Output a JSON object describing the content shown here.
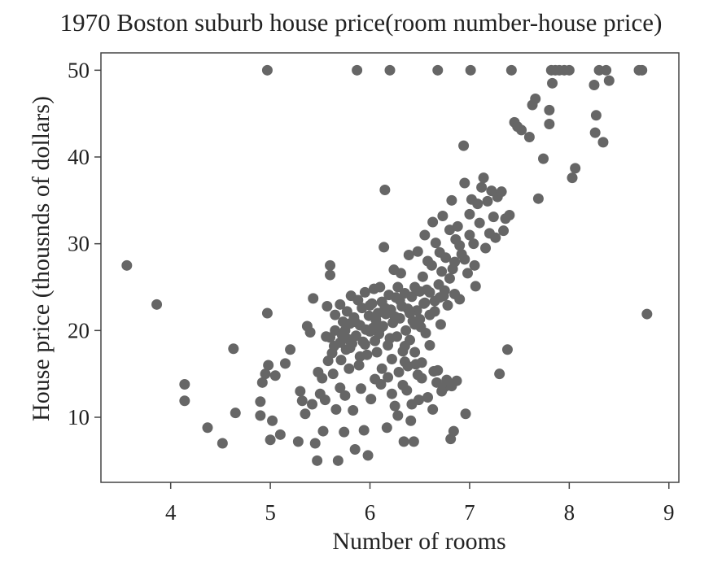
{
  "chart_data": {
    "type": "scatter",
    "title": "1970 Boston suburb house price(room number-house price)",
    "xlabel": "Number of rooms",
    "ylabel": "House price (thousnds of dollars)",
    "xlim": [
      3.3,
      9.1
    ],
    "ylim": [
      2.5,
      52
    ],
    "xticks": [
      4,
      5,
      6,
      7,
      8,
      9
    ],
    "yticks": [
      10,
      20,
      30,
      40,
      50
    ],
    "grid": false,
    "legend": "none",
    "marker_color": "#666666",
    "points": [
      [
        3.56,
        27.5
      ],
      [
        3.86,
        23.0
      ],
      [
        4.14,
        13.8
      ],
      [
        4.14,
        11.9
      ],
      [
        4.37,
        8.8
      ],
      [
        4.52,
        7.0
      ],
      [
        4.63,
        17.9
      ],
      [
        4.65,
        10.5
      ],
      [
        4.97,
        50.0
      ],
      [
        4.97,
        22.0
      ],
      [
        4.9,
        10.2
      ],
      [
        4.9,
        11.8
      ],
      [
        4.92,
        14.0
      ],
      [
        4.95,
        15.0
      ],
      [
        4.98,
        16.0
      ],
      [
        5.0,
        7.4
      ],
      [
        5.02,
        9.6
      ],
      [
        5.05,
        14.8
      ],
      [
        5.1,
        8.0
      ],
      [
        5.15,
        16.2
      ],
      [
        5.2,
        17.8
      ],
      [
        5.28,
        7.2
      ],
      [
        5.3,
        13.0
      ],
      [
        5.32,
        11.9
      ],
      [
        5.35,
        10.4
      ],
      [
        5.37,
        20.5
      ],
      [
        5.4,
        19.8
      ],
      [
        5.42,
        11.5
      ],
      [
        5.43,
        23.7
      ],
      [
        5.45,
        7.0
      ],
      [
        5.47,
        5.0
      ],
      [
        5.48,
        15.2
      ],
      [
        5.5,
        12.7
      ],
      [
        5.52,
        14.5
      ],
      [
        5.53,
        8.4
      ],
      [
        5.55,
        12.0
      ],
      [
        5.56,
        19.3
      ],
      [
        5.57,
        22.8
      ],
      [
        5.58,
        16.5
      ],
      [
        5.6,
        26.4
      ],
      [
        5.6,
        27.5
      ],
      [
        5.62,
        17.4
      ],
      [
        5.63,
        15.0
      ],
      [
        5.64,
        18.2
      ],
      [
        5.65,
        20.0
      ],
      [
        5.66,
        10.9
      ],
      [
        5.68,
        5.0
      ],
      [
        5.7,
        23.0
      ],
      [
        5.7,
        13.4
      ],
      [
        5.71,
        16.6
      ],
      [
        5.72,
        19.5
      ],
      [
        5.73,
        21.0
      ],
      [
        5.74,
        8.3
      ],
      [
        5.75,
        12.5
      ],
      [
        5.76,
        17.8
      ],
      [
        5.77,
        22.2
      ],
      [
        5.78,
        19.0
      ],
      [
        5.79,
        15.6
      ],
      [
        5.8,
        20.8
      ],
      [
        5.81,
        24.0
      ],
      [
        5.82,
        18.5
      ],
      [
        5.83,
        10.8
      ],
      [
        5.84,
        21.5
      ],
      [
        5.85,
        6.3
      ],
      [
        5.86,
        19.4
      ],
      [
        5.87,
        50.0
      ],
      [
        5.88,
        23.5
      ],
      [
        5.89,
        16.0
      ],
      [
        5.9,
        20.6
      ],
      [
        5.91,
        13.3
      ],
      [
        5.92,
        22.6
      ],
      [
        5.93,
        18.7
      ],
      [
        5.94,
        8.5
      ],
      [
        5.95,
        24.4
      ],
      [
        5.96,
        20.1
      ],
      [
        5.97,
        17.2
      ],
      [
        5.98,
        5.6
      ],
      [
        5.99,
        21.7
      ],
      [
        6.0,
        19.9
      ],
      [
        6.01,
        12.1
      ],
      [
        6.02,
        23.1
      ],
      [
        6.03,
        20.3
      ],
      [
        6.04,
        24.8
      ],
      [
        6.05,
        14.4
      ],
      [
        6.06,
        21.2
      ],
      [
        6.07,
        17.5
      ],
      [
        6.08,
        22.0
      ],
      [
        6.09,
        19.6
      ],
      [
        6.1,
        25.0
      ],
      [
        6.11,
        13.8
      ],
      [
        6.12,
        23.3
      ],
      [
        6.13,
        20.5
      ],
      [
        6.14,
        29.6
      ],
      [
        6.15,
        36.2
      ],
      [
        6.16,
        21.9
      ],
      [
        6.17,
        8.8
      ],
      [
        6.18,
        18.3
      ],
      [
        6.19,
        24.1
      ],
      [
        6.2,
        50.0
      ],
      [
        6.21,
        22.4
      ],
      [
        6.22,
        16.7
      ],
      [
        6.23,
        20.9
      ],
      [
        6.24,
        27.0
      ],
      [
        6.25,
        11.3
      ],
      [
        6.26,
        23.8
      ],
      [
        6.27,
        19.3
      ],
      [
        6.28,
        25.0
      ],
      [
        6.29,
        15.2
      ],
      [
        6.3,
        21.4
      ],
      [
        6.31,
        26.6
      ],
      [
        6.32,
        22.8
      ],
      [
        6.33,
        17.6
      ],
      [
        6.34,
        7.2
      ],
      [
        6.35,
        24.3
      ],
      [
        6.36,
        20.0
      ],
      [
        6.37,
        13.1
      ],
      [
        6.38,
        22.5
      ],
      [
        6.39,
        28.7
      ],
      [
        6.4,
        18.9
      ],
      [
        6.41,
        9.6
      ],
      [
        6.42,
        23.9
      ],
      [
        6.43,
        21.1
      ],
      [
        6.44,
        7.2
      ],
      [
        6.45,
        25.0
      ],
      [
        6.46,
        16.1
      ],
      [
        6.47,
        22.3
      ],
      [
        6.48,
        29.1
      ],
      [
        6.49,
        12.0
      ],
      [
        6.5,
        24.5
      ],
      [
        6.51,
        20.4
      ],
      [
        6.52,
        14.5
      ],
      [
        6.53,
        26.2
      ],
      [
        6.54,
        23.1
      ],
      [
        6.55,
        31.0
      ],
      [
        6.56,
        19.7
      ],
      [
        6.57,
        24.7
      ],
      [
        6.58,
        28.0
      ],
      [
        6.6,
        21.8
      ],
      [
        6.62,
        27.5
      ],
      [
        6.63,
        32.5
      ],
      [
        6.64,
        15.3
      ],
      [
        6.65,
        23.4
      ],
      [
        6.66,
        30.1
      ],
      [
        6.67,
        14.0
      ],
      [
        6.68,
        50.0
      ],
      [
        6.69,
        25.3
      ],
      [
        6.7,
        29.0
      ],
      [
        6.71,
        20.7
      ],
      [
        6.72,
        26.8
      ],
      [
        6.73,
        33.2
      ],
      [
        6.74,
        24.0
      ],
      [
        6.75,
        13.5
      ],
      [
        6.76,
        28.4
      ],
      [
        6.78,
        22.9
      ],
      [
        6.8,
        31.6
      ],
      [
        6.81,
        7.5
      ],
      [
        6.82,
        35.0
      ],
      [
        6.83,
        27.1
      ],
      [
        6.84,
        8.4
      ],
      [
        6.85,
        24.2
      ],
      [
        6.86,
        30.5
      ],
      [
        6.87,
        14.2
      ],
      [
        6.88,
        32.0
      ],
      [
        6.9,
        23.6
      ],
      [
        6.92,
        28.8
      ],
      [
        6.94,
        41.3
      ],
      [
        6.95,
        37.0
      ],
      [
        6.96,
        10.4
      ],
      [
        6.98,
        26.6
      ],
      [
        7.0,
        33.4
      ],
      [
        7.01,
        50.0
      ],
      [
        7.02,
        35.1
      ],
      [
        7.04,
        30.0
      ],
      [
        7.06,
        25.1
      ],
      [
        7.08,
        34.6
      ],
      [
        7.1,
        32.4
      ],
      [
        7.12,
        36.5
      ],
      [
        7.14,
        37.6
      ],
      [
        7.16,
        29.5
      ],
      [
        7.18,
        34.9
      ],
      [
        7.2,
        31.2
      ],
      [
        7.22,
        36.1
      ],
      [
        7.24,
        33.1
      ],
      [
        7.26,
        30.7
      ],
      [
        7.28,
        35.4
      ],
      [
        7.3,
        15.0
      ],
      [
        7.32,
        36.0
      ],
      [
        7.34,
        31.5
      ],
      [
        7.36,
        32.9
      ],
      [
        7.38,
        17.8
      ],
      [
        7.4,
        33.3
      ],
      [
        7.42,
        50.0
      ],
      [
        7.45,
        44.0
      ],
      [
        7.48,
        43.5
      ],
      [
        7.52,
        43.1
      ],
      [
        7.6,
        42.3
      ],
      [
        7.63,
        46.0
      ],
      [
        7.66,
        46.7
      ],
      [
        7.69,
        35.2
      ],
      [
        7.74,
        39.8
      ],
      [
        7.8,
        45.4
      ],
      [
        7.8,
        43.8
      ],
      [
        7.82,
        50.0
      ],
      [
        7.83,
        48.5
      ],
      [
        7.86,
        50.0
      ],
      [
        7.9,
        50.0
      ],
      [
        7.95,
        50.0
      ],
      [
        8.0,
        50.0
      ],
      [
        8.03,
        37.6
      ],
      [
        8.06,
        38.7
      ],
      [
        8.25,
        48.3
      ],
      [
        8.26,
        42.8
      ],
      [
        8.27,
        44.8
      ],
      [
        8.3,
        50.0
      ],
      [
        8.34,
        41.7
      ],
      [
        8.37,
        50.0
      ],
      [
        8.4,
        48.8
      ],
      [
        8.7,
        50.0
      ],
      [
        8.73,
        50.0
      ],
      [
        8.78,
        21.9
      ],
      [
        5.9,
        17.0
      ],
      [
        5.95,
        18.4
      ],
      [
        6.0,
        22.9
      ],
      [
        6.05,
        18.8
      ],
      [
        6.1,
        20.2
      ],
      [
        6.15,
        22.6
      ],
      [
        6.2,
        19.1
      ],
      [
        6.25,
        21.6
      ],
      [
        6.3,
        23.5
      ],
      [
        6.35,
        18.2
      ],
      [
        6.4,
        22.0
      ],
      [
        6.45,
        20.7
      ],
      [
        6.5,
        21.3
      ],
      [
        6.55,
        23.2
      ],
      [
        6.6,
        24.4
      ],
      [
        6.65,
        22.2
      ],
      [
        6.7,
        23.8
      ],
      [
        6.75,
        24.6
      ],
      [
        6.8,
        26.0
      ],
      [
        6.85,
        27.9
      ],
      [
        6.9,
        29.8
      ],
      [
        6.95,
        28.2
      ],
      [
        7.0,
        31.0
      ],
      [
        7.05,
        27.5
      ],
      [
        5.85,
        21.0
      ],
      [
        5.8,
        18.0
      ],
      [
        5.75,
        20.0
      ],
      [
        5.7,
        18.6
      ],
      [
        5.65,
        21.8
      ],
      [
        5.6,
        19.2
      ],
      [
        6.12,
        15.6
      ],
      [
        6.18,
        14.6
      ],
      [
        6.22,
        12.7
      ],
      [
        6.28,
        10.2
      ],
      [
        6.33,
        13.7
      ],
      [
        6.38,
        15.9
      ],
      [
        6.42,
        11.5
      ],
      [
        6.48,
        14.9
      ],
      [
        6.52,
        16.3
      ],
      [
        6.58,
        12.3
      ],
      [
        6.63,
        10.9
      ],
      [
        6.68,
        15.4
      ],
      [
        6.72,
        13.0
      ],
      [
        6.77,
        14.3
      ],
      [
        6.82,
        13.6
      ],
      [
        6.6,
        18.3
      ],
      [
        6.45,
        17.5
      ],
      [
        6.35,
        16.4
      ]
    ]
  }
}
